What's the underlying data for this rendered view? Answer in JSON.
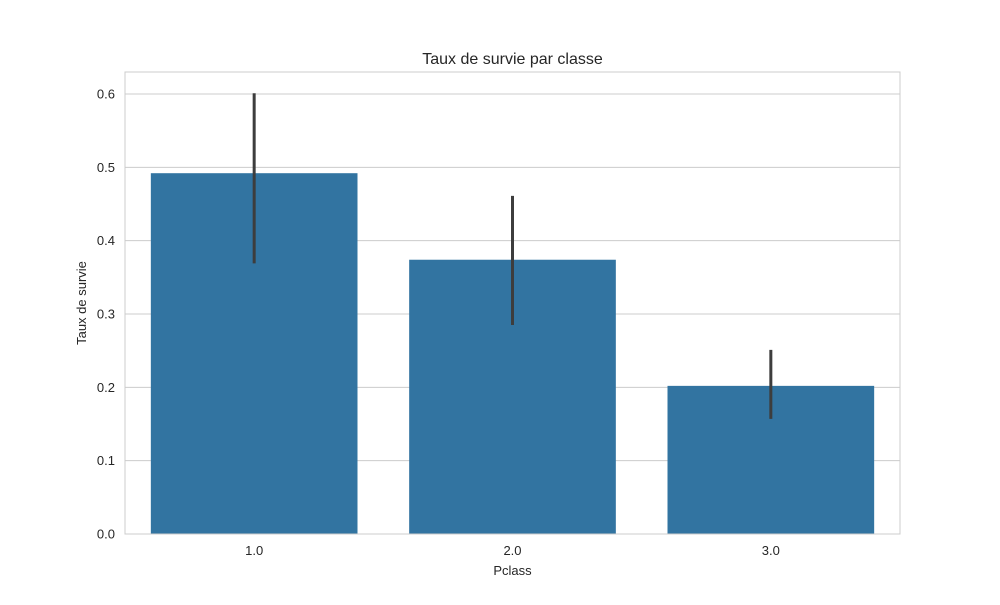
{
  "chart_data": {
    "type": "bar",
    "title": "Taux de survie par classe",
    "xlabel": "Pclass",
    "ylabel": "Taux de survie",
    "categories": [
      "1.0",
      "2.0",
      "3.0"
    ],
    "values": [
      0.492,
      0.374,
      0.202
    ],
    "error_bars": [
      {
        "low": 0.369,
        "high": 0.601
      },
      {
        "low": 0.285,
        "high": 0.461
      },
      {
        "low": 0.157,
        "high": 0.251
      }
    ],
    "ylim": [
      0,
      0.63
    ],
    "yticks": [
      0.0,
      0.1,
      0.2,
      0.3,
      0.4,
      0.5,
      0.6
    ],
    "ytick_labels": [
      "0.0",
      "0.1",
      "0.2",
      "0.3",
      "0.4",
      "0.5",
      "0.6"
    ],
    "grid": true,
    "colors": {
      "bar": "#3274a1",
      "error_bar": "#3d3d3d",
      "grid": "#cccccc",
      "axes_edge": "#cccccc",
      "text": "#262626"
    }
  }
}
